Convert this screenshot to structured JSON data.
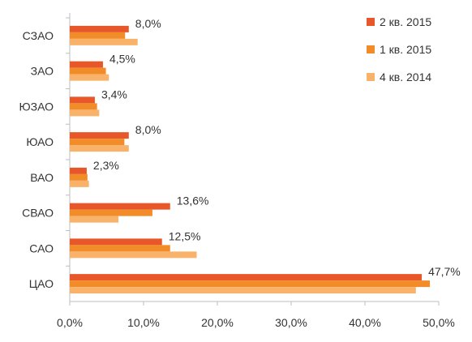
{
  "chart_data": {
    "type": "bar",
    "orientation": "horizontal",
    "categories": [
      "СЗАО",
      "ЗАО",
      "ЮЗАО",
      "ЮАО",
      "ВАО",
      "СВАО",
      "САО",
      "ЦАО"
    ],
    "series": [
      {
        "name": "2 кв. 2015",
        "color": "#e8572a",
        "values": [
          8.0,
          4.5,
          3.4,
          8.0,
          2.3,
          13.6,
          12.5,
          47.7
        ]
      },
      {
        "name": "1 кв. 2015",
        "color": "#f28c28",
        "values": [
          7.5,
          4.9,
          3.7,
          7.4,
          2.4,
          11.2,
          13.6,
          48.8
        ]
      },
      {
        "name": "4 кв. 2014",
        "color": "#f9b26a",
        "values": [
          9.2,
          5.3,
          4.0,
          8.0,
          2.6,
          6.6,
          17.2,
          46.9
        ]
      }
    ],
    "data_labels": [
      "8,0%",
      "4,5%",
      "3,4%",
      "8,0%",
      "2,3%",
      "13,6%",
      "12,5%",
      "47,7%"
    ],
    "xlim": [
      0,
      50
    ],
    "xticks": [
      0,
      10,
      20,
      30,
      40,
      50
    ],
    "xtick_labels": [
      "0,0%",
      "10,0%",
      "20,0%",
      "30,0%",
      "40,0%",
      "50,0%"
    ],
    "grid": false,
    "legend_position": "top-right"
  }
}
